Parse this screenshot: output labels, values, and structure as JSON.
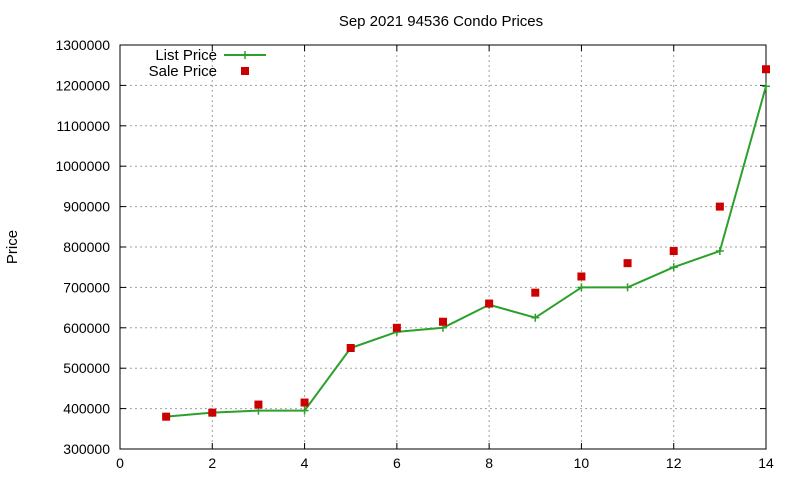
{
  "chart_data": {
    "type": "line",
    "title": "Sep 2021 94536 Condo Prices",
    "xlabel": "",
    "ylabel": "Price",
    "xlim": [
      0,
      14
    ],
    "ylim": [
      300000,
      1300000
    ],
    "xticks": [
      0,
      2,
      4,
      6,
      8,
      10,
      12,
      14
    ],
    "yticks": [
      300000,
      400000,
      500000,
      600000,
      700000,
      800000,
      900000,
      1000000,
      1100000,
      1200000,
      1300000
    ],
    "grid": true,
    "legend_position": "top-left",
    "series": [
      {
        "name": "List Price",
        "style": "line-with-plus-markers",
        "color": "#2ca02c",
        "x": [
          1,
          2,
          3,
          4,
          5,
          6,
          7,
          8,
          9,
          10,
          11,
          12,
          13,
          14
        ],
        "y": [
          380000,
          390000,
          395000,
          395000,
          550000,
          590000,
          600000,
          657000,
          625000,
          700000,
          700000,
          750000,
          790000,
          1198000
        ]
      },
      {
        "name": "Sale Price",
        "style": "square-markers",
        "color": "#cc0000",
        "x": [
          1,
          2,
          3,
          4,
          5,
          6,
          7,
          8,
          9,
          10,
          11,
          12,
          13,
          14
        ],
        "y": [
          380000,
          390000,
          410000,
          415000,
          550000,
          600000,
          615000,
          660000,
          687000,
          727000,
          760000,
          790000,
          900000,
          1240000
        ]
      }
    ]
  }
}
